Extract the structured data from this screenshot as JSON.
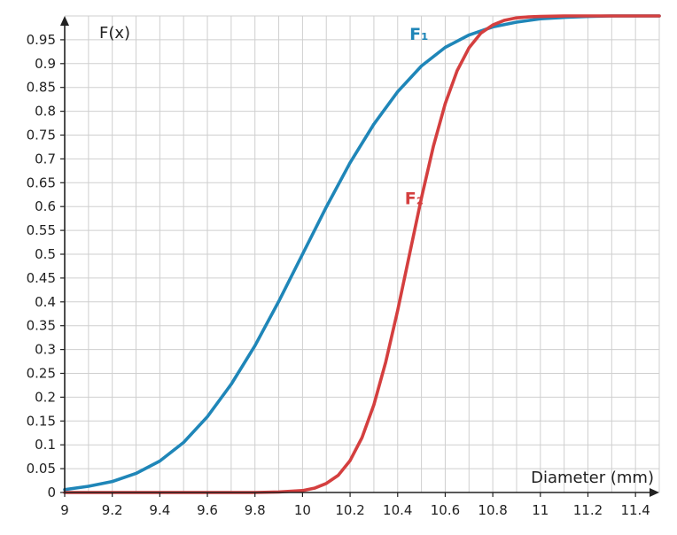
{
  "chart_data": {
    "type": "line",
    "title": "",
    "xlabel": "Diameter (mm)",
    "ylabel": "F(x)",
    "xlim": [
      9,
      11.5
    ],
    "ylim": [
      0,
      1.0
    ],
    "grid": true,
    "x_ticks": [
      "9",
      "9.2",
      "9.4",
      "9.6",
      "9.8",
      "10",
      "10.2",
      "10.4",
      "10.6",
      "10.8",
      "11",
      "11.2",
      "11.4"
    ],
    "y_ticks": [
      "0",
      "0.05",
      "0.1",
      "0.15",
      "0.2",
      "0.25",
      "0.3",
      "0.35",
      "0.4",
      "0.45",
      "0.5",
      "0.55",
      "0.6",
      "0.65",
      "0.7",
      "0.75",
      "0.8",
      "0.85",
      "0.9",
      "0.95"
    ],
    "series": [
      {
        "name": "F₁",
        "color": "#1f86b8",
        "x": [
          9.0,
          9.1,
          9.2,
          9.3,
          9.4,
          9.5,
          9.6,
          9.7,
          9.8,
          9.9,
          10.0,
          10.1,
          10.2,
          10.3,
          10.4,
          10.5,
          10.6,
          10.7,
          10.8,
          10.9,
          11.0,
          11.1,
          11.2,
          11.3,
          11.4,
          11.5
        ],
        "y": [
          0.006,
          0.013,
          0.023,
          0.04,
          0.066,
          0.105,
          0.159,
          0.227,
          0.308,
          0.401,
          0.5,
          0.599,
          0.692,
          0.773,
          0.841,
          0.895,
          0.934,
          0.96,
          0.977,
          0.987,
          0.994,
          0.997,
          0.999,
          1.0,
          1.0,
          1.0
        ]
      },
      {
        "name": "F₂",
        "color": "#d43f3f",
        "x": [
          9.0,
          9.2,
          9.4,
          9.6,
          9.8,
          9.9,
          10.0,
          10.05,
          10.1,
          10.15,
          10.2,
          10.25,
          10.3,
          10.35,
          10.4,
          10.45,
          10.5,
          10.55,
          10.6,
          10.65,
          10.7,
          10.75,
          10.8,
          10.85,
          10.9,
          10.95,
          11.0,
          11.1,
          11.2,
          11.5
        ],
        "y": [
          0.0,
          0.0,
          0.0,
          0.0,
          0.0,
          0.001,
          0.004,
          0.009,
          0.019,
          0.036,
          0.067,
          0.115,
          0.184,
          0.274,
          0.382,
          0.5,
          0.618,
          0.726,
          0.816,
          0.885,
          0.933,
          0.964,
          0.981,
          0.991,
          0.996,
          0.998,
          0.999,
          1.0,
          1.0,
          1.0
        ]
      }
    ],
    "annotations": [
      {
        "text": "F₁",
        "series": 0,
        "x": 10.45,
        "y": 0.95
      },
      {
        "text": "F₂",
        "series": 1,
        "x": 10.43,
        "y": 0.605
      }
    ]
  }
}
